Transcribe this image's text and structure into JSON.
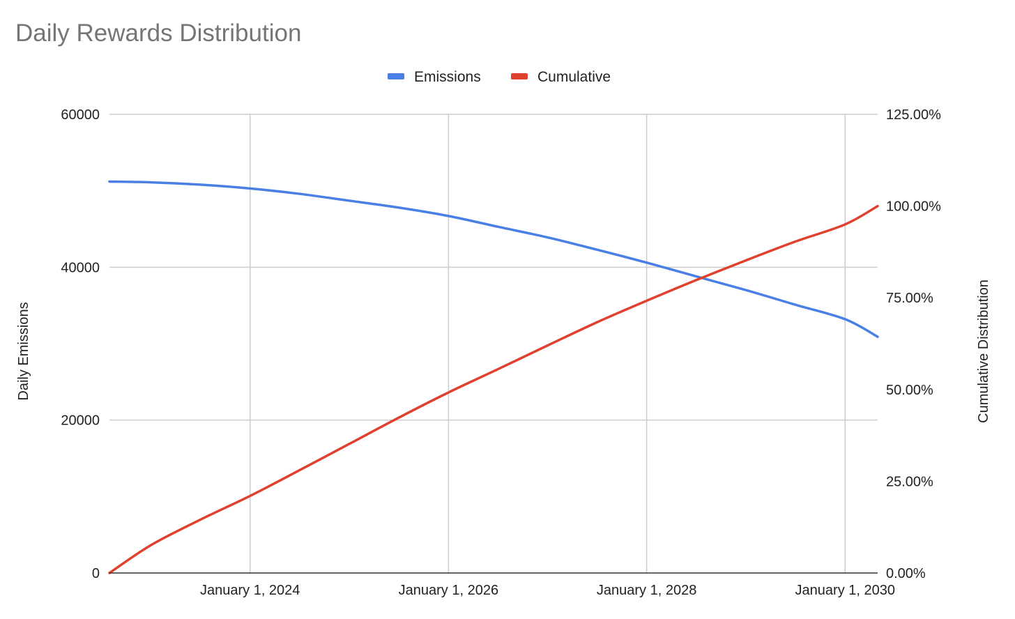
{
  "chart_data": {
    "type": "line",
    "title": "Daily Rewards Distribution",
    "xlabel": "",
    "ylabel": "Daily Emissions",
    "y2label": "Cumulative Distribution",
    "legend_position": "top",
    "grid": true,
    "x_ticks": [
      "January 1, 2024",
      "January 1, 2026",
      "January 1, 2028",
      "January 1, 2030"
    ],
    "y_ticks": [
      "0",
      "20000",
      "40000",
      "60000"
    ],
    "y2_ticks": [
      "0.00%",
      "25.00%",
      "50.00%",
      "75.00%",
      "100.00%",
      "125.00%"
    ],
    "xlim": [
      "2022-08-01",
      "2030-05-01"
    ],
    "ylim": [
      0,
      60000
    ],
    "y2lim": [
      0,
      125
    ],
    "x_gridlines": [
      "2024-01-01",
      "2026-01-01",
      "2028-01-01",
      "2030-01-01"
    ],
    "series": [
      {
        "name": "Emissions",
        "axis": "left",
        "color": "#4a80e5",
        "x": [
          "2022-08-01",
          "2023-01-01",
          "2023-07-01",
          "2024-01-01",
          "2024-07-01",
          "2025-01-01",
          "2025-07-01",
          "2026-01-01",
          "2026-07-01",
          "2027-01-01",
          "2027-07-01",
          "2028-01-01",
          "2028-07-01",
          "2029-01-01",
          "2029-07-01",
          "2030-01-01",
          "2030-05-01"
        ],
        "values": [
          51200,
          51100,
          50800,
          50300,
          49600,
          48700,
          47800,
          46700,
          45300,
          43900,
          42300,
          40600,
          38800,
          37000,
          35100,
          33200,
          30900
        ]
      },
      {
        "name": "Cumulative",
        "axis": "right",
        "color": "#e0412f",
        "x": [
          "2022-08-01",
          "2023-01-01",
          "2023-07-01",
          "2024-01-01",
          "2024-07-01",
          "2025-01-01",
          "2025-07-01",
          "2026-01-01",
          "2026-07-01",
          "2027-01-01",
          "2027-07-01",
          "2028-01-01",
          "2028-07-01",
          "2029-01-01",
          "2029-07-01",
          "2030-01-01",
          "2030-05-01"
        ],
        "values": [
          0,
          7.6,
          14.5,
          21.0,
          28.0,
          35.2,
          42.3,
          49.2,
          55.5,
          62.0,
          68.3,
          74.2,
          79.8,
          85.2,
          90.3,
          95.0,
          100.0
        ]
      }
    ]
  }
}
